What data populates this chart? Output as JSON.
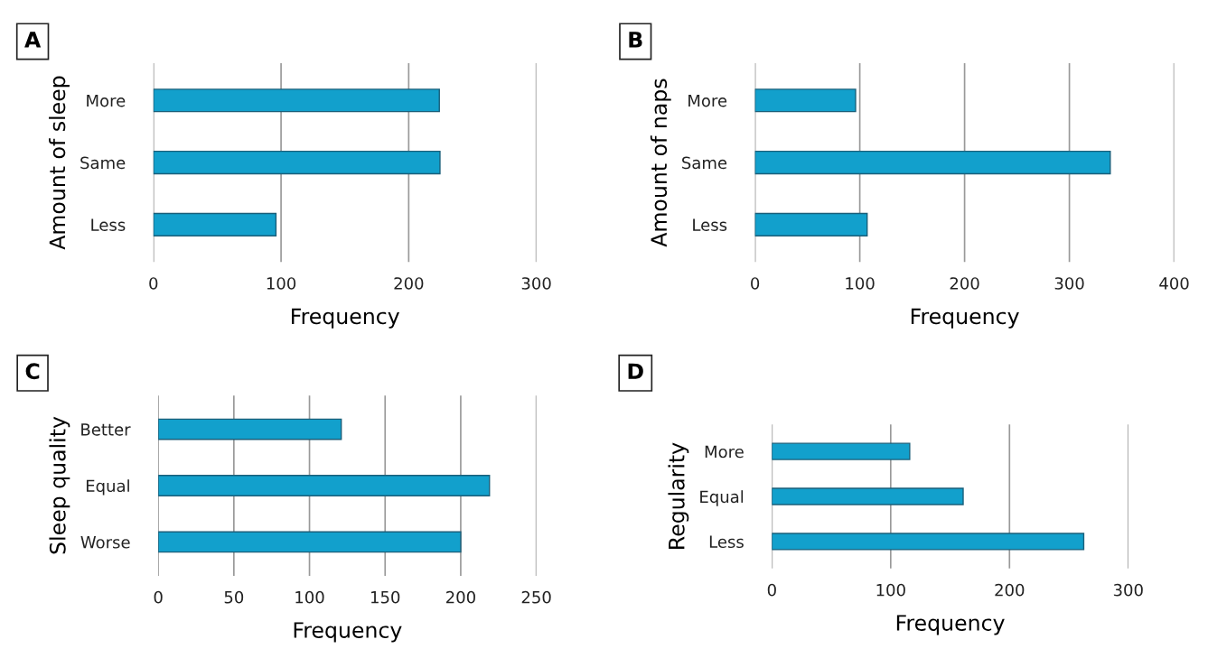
{
  "chart_data": [
    {
      "type": "bar",
      "orientation": "horizontal",
      "title": "A",
      "ylabel": "Amount of sleep",
      "xlabel": "Frequency",
      "categories": [
        "More",
        "Same",
        "Less"
      ],
      "values": [
        224,
        224.5,
        96
      ],
      "color": "#12a0cc",
      "xlim": [
        0,
        300
      ],
      "xticks": [
        0,
        100,
        200,
        300
      ],
      "grid": "x"
    },
    {
      "type": "bar",
      "orientation": "horizontal",
      "title": "B",
      "ylabel": "Amount of naps",
      "xlabel": "Frequency",
      "categories": [
        "More",
        "Same",
        "Less"
      ],
      "values": [
        96,
        339,
        107
      ],
      "color": "#12a0cc",
      "xlim": [
        0,
        400
      ],
      "xticks": [
        0,
        100,
        200,
        300,
        400
      ],
      "grid": "x"
    },
    {
      "type": "bar",
      "orientation": "horizontal",
      "title": "C",
      "ylabel": "Sleep quality",
      "xlabel": "Frequency",
      "categories": [
        "Better",
        "Equal",
        "Worse"
      ],
      "values": [
        121,
        219,
        200
      ],
      "color": "#12a0cc",
      "xlim": [
        0,
        250
      ],
      "xticks": [
        0,
        50,
        100,
        150,
        200,
        250
      ],
      "grid": "x"
    },
    {
      "type": "bar",
      "orientation": "horizontal",
      "title": "D",
      "ylabel": "Regularity",
      "xlabel": "Frequency",
      "categories": [
        "More",
        "Equal",
        "Less"
      ],
      "values": [
        116,
        161,
        262.5
      ],
      "color": "#12a0cc",
      "xlim": [
        0,
        300
      ],
      "xticks": [
        0,
        100,
        200,
        300
      ],
      "grid": "x"
    }
  ]
}
